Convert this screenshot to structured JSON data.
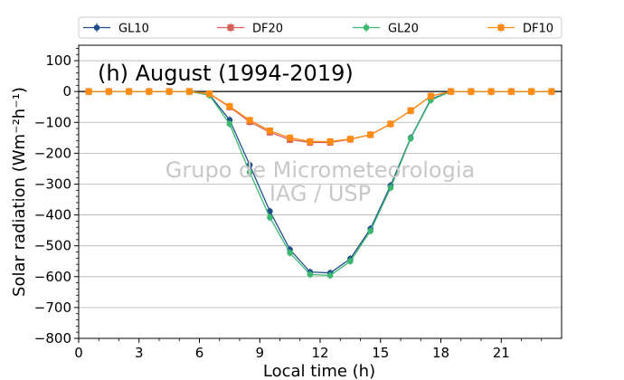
{
  "chart_data": {
    "type": "line",
    "title": "(h) August (1994-2019)",
    "xlabel": "Local time (h)",
    "ylabel": "Solar radiation (Wm⁻²h⁻¹)",
    "xlim": [
      0,
      24
    ],
    "ylim": [
      -800,
      150
    ],
    "xticks": [
      0,
      3,
      6,
      9,
      12,
      15,
      18,
      21
    ],
    "yticks": [
      -800,
      -700,
      -600,
      -500,
      -400,
      -300,
      -200,
      -100,
      0,
      100
    ],
    "grid": "horizontal",
    "legend_placement": "top",
    "watermark": [
      "Grupo de Micrometeorologia",
      "IAG / USP"
    ],
    "x": [
      0.5,
      1.5,
      2.5,
      3.5,
      4.5,
      5.5,
      6.5,
      7.5,
      8.5,
      9.5,
      10.5,
      11.5,
      12.5,
      13.5,
      14.5,
      15.5,
      16.5,
      17.5,
      18.5,
      19.5,
      20.5,
      21.5,
      22.5,
      23.5
    ],
    "series": [
      {
        "name": "GL10",
        "color": "#1f4e8c",
        "marker": "circle",
        "values": [
          0,
          0,
          0,
          0,
          0,
          0,
          -10,
          -92,
          -238,
          -388,
          -512,
          -585,
          -588,
          -542,
          -445,
          -305,
          -150,
          -25,
          0,
          0,
          0,
          0,
          0,
          0
        ]
      },
      {
        "name": "DF20",
        "color": "#d9605a",
        "marker": "square",
        "values": [
          0,
          0,
          0,
          0,
          0,
          0,
          -8,
          -50,
          -98,
          -132,
          -156,
          -165,
          -165,
          -155,
          -140,
          -105,
          -62,
          -15,
          0,
          0,
          0,
          0,
          0,
          0
        ]
      },
      {
        "name": "GL20",
        "color": "#3cb870",
        "marker": "circle",
        "values": [
          0,
          0,
          0,
          0,
          0,
          0,
          -12,
          -105,
          -262,
          -408,
          -523,
          -593,
          -596,
          -550,
          -452,
          -312,
          -152,
          -28,
          0,
          0,
          0,
          0,
          0,
          0
        ]
      },
      {
        "name": "DF10",
        "color": "#ff8c10",
        "marker": "square",
        "values": [
          0,
          0,
          0,
          0,
          0,
          0,
          -7,
          -48,
          -93,
          -127,
          -150,
          -162,
          -162,
          -154,
          -140,
          -105,
          -62,
          -15,
          0,
          0,
          0,
          0,
          0,
          0
        ]
      }
    ]
  }
}
